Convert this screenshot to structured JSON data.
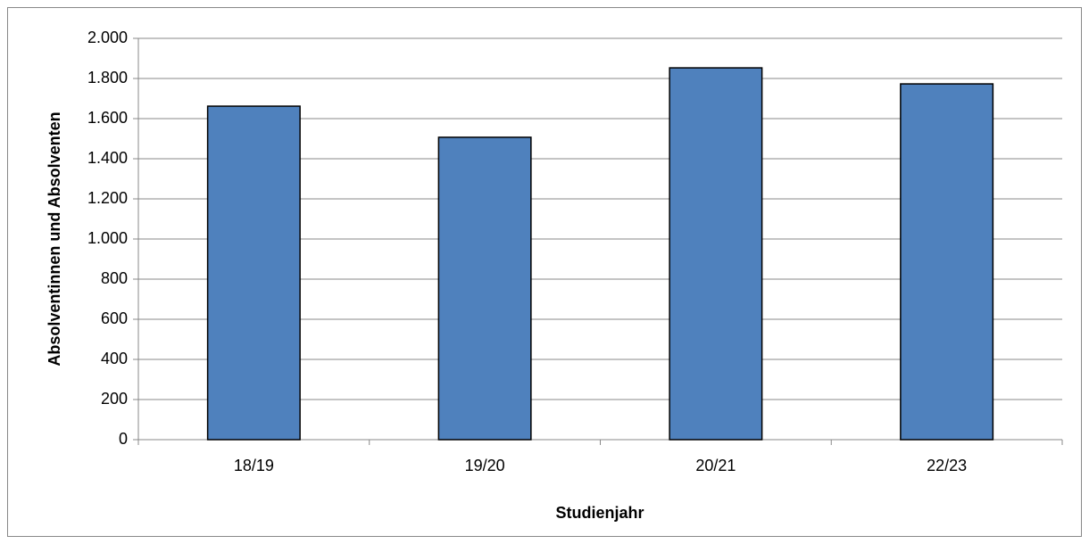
{
  "chart_data": {
    "type": "bar",
    "x_label": "Studienjahr",
    "y_label": "Absolventinnen und Absolventen",
    "categories": [
      "18/19",
      "19/20",
      "20/21",
      "22/23"
    ],
    "values": [
      1662,
      1507,
      1853,
      1773
    ],
    "color": "#4f81bd",
    "ylim": [
      0,
      2000
    ],
    "yticks": [
      0,
      200,
      400,
      600,
      800,
      {
        "value": 1000,
        "label": "1.000"
      },
      {
        "value": 1200,
        "label": "1.200"
      },
      {
        "value": 1400,
        "label": "1.400"
      },
      {
        "value": 1600,
        "label": "1.600"
      },
      {
        "value": 1800,
        "label": "1.800"
      },
      {
        "value": 2000,
        "label": "2.000"
      }
    ],
    "grid": true
  }
}
